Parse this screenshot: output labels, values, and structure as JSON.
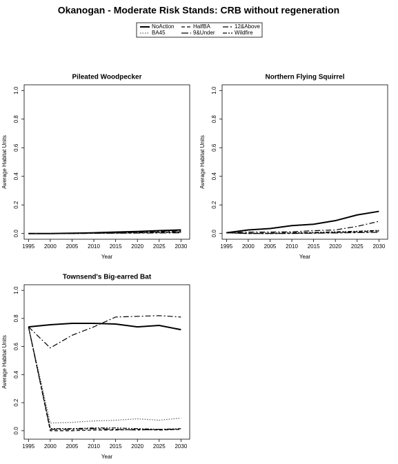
{
  "title": "Okanogan  - Moderate Risk Stands: CRB without regeneration",
  "chart_data": [
    {
      "type": "line",
      "title": "Pileated Woodpecker",
      "x_label": "Year",
      "y_label": "Average Habitat Units",
      "x": [
        1995,
        2000,
        2005,
        2010,
        2015,
        2020,
        2025,
        2030
      ],
      "xlim": [
        1994,
        2032
      ],
      "xticks": [
        1995,
        2000,
        2005,
        2010,
        2015,
        2020,
        2025,
        2030
      ],
      "ylim": [
        -0.04,
        1.04
      ],
      "yticks": [
        {
          "value": 0,
          "label": "0.0"
        },
        0.2,
        0.4,
        0.6,
        0.8,
        {
          "value": 1,
          "label": "1.0"
        }
      ],
      "series": [
        {
          "name": "NoAction",
          "color": "#000000",
          "values": [
            0,
            0,
            0.002,
            0.005,
            0.01,
            0.014,
            0.02,
            0.025
          ]
        },
        {
          "name": "HalfBA",
          "color": "#000000",
          "values": [
            0,
            0,
            0,
            0.002,
            0.004,
            0.006,
            0.01,
            0.012
          ]
        },
        {
          "name": "12&Above",
          "color": "#000000",
          "values": [
            0,
            0,
            0.001,
            0.003,
            0.006,
            0.01,
            0.015,
            0.018
          ]
        },
        {
          "name": "BA45",
          "color": "#555555",
          "values": [
            0,
            0,
            0.001,
            0.002,
            0.004,
            0.005,
            0.008,
            0.01
          ]
        },
        {
          "name": "9&Under",
          "color": "#000000",
          "values": [
            0,
            0,
            0,
            0.001,
            0.002,
            0.003,
            0.004,
            0.005
          ]
        },
        {
          "name": "Wildfire",
          "color": "#000000",
          "values": [
            0,
            0,
            0.001,
            0.002,
            0.003,
            0.005,
            0.006,
            0.008
          ]
        }
      ]
    },
    {
      "type": "line",
      "title": "Northern Flying Squirrel",
      "x_label": "Year",
      "y_label": "Average Habitat Units",
      "x": [
        1995,
        2000,
        2005,
        2010,
        2015,
        2020,
        2025,
        2030
      ],
      "xlim": [
        1994,
        2032
      ],
      "xticks": [
        1995,
        2000,
        2005,
        2010,
        2015,
        2020,
        2025,
        2030
      ],
      "ylim": [
        -0.04,
        1.04
      ],
      "yticks": [
        {
          "value": 0,
          "label": "0.0"
        },
        0.2,
        0.4,
        0.6,
        0.8,
        {
          "value": 1,
          "label": "1.0"
        }
      ],
      "series": [
        {
          "name": "NoAction",
          "color": "#000000",
          "values": [
            0.005,
            0.025,
            0.035,
            0.055,
            0.065,
            0.09,
            0.13,
            0.155
          ]
        },
        {
          "name": "HalfBA",
          "color": "#000000",
          "values": [
            0.005,
            0,
            0,
            0.002,
            0.004,
            0.008,
            0.012,
            0.018
          ]
        },
        {
          "name": "12&Above",
          "color": "#000000",
          "values": [
            0.005,
            0.01,
            0.01,
            0.012,
            0.02,
            0.025,
            0.05,
            0.085
          ]
        },
        {
          "name": "BA45",
          "color": "#555555",
          "values": [
            0.005,
            0,
            0,
            0.001,
            0.003,
            0.005,
            0.008,
            0.01
          ]
        },
        {
          "name": "9&Under",
          "color": "#000000",
          "values": [
            0.005,
            0,
            0,
            0,
            0.002,
            0.004,
            0.006,
            0.008
          ]
        },
        {
          "name": "Wildfire",
          "color": "#000000",
          "values": [
            0.005,
            0.002,
            0.003,
            0.005,
            0.008,
            0.012,
            0.016,
            0.022
          ]
        }
      ]
    },
    {
      "type": "line",
      "title": "Townsend's Big-earred Bat",
      "x_label": "Year",
      "y_label": "Average Habitat Units",
      "x": [
        1995,
        2000,
        2005,
        2010,
        2015,
        2020,
        2025,
        2030
      ],
      "xlim": [
        1994,
        2032
      ],
      "xticks": [
        1995,
        2000,
        2005,
        2010,
        2015,
        2020,
        2025,
        2030
      ],
      "ylim": [
        -0.06,
        1.04
      ],
      "yticks": [
        {
          "value": 0,
          "label": "0.0"
        },
        0.2,
        0.4,
        0.6,
        0.8,
        {
          "value": 1,
          "label": "1.0"
        }
      ],
      "series": [
        {
          "name": "NoAction",
          "color": "#000000",
          "values": [
            0.74,
            0.755,
            0.765,
            0.765,
            0.76,
            0.74,
            0.75,
            0.72
          ]
        },
        {
          "name": "HalfBA",
          "color": "#000000",
          "values": [
            0.74,
            0,
            0,
            0.005,
            0.005,
            0.01,
            0.005,
            0.01
          ]
        },
        {
          "name": "12&Above",
          "color": "#000000",
          "values": [
            0.74,
            0.59,
            0.68,
            0.74,
            0.81,
            0.815,
            0.82,
            0.81
          ]
        },
        {
          "name": "BA45",
          "color": "#555555",
          "values": [
            0.74,
            0.055,
            0.06,
            0.07,
            0.075,
            0.085,
            0.075,
            0.09
          ]
        },
        {
          "name": "9&Under",
          "color": "#000000",
          "values": [
            0.74,
            0.01,
            0.01,
            0.015,
            0.01,
            0.005,
            0.01,
            0.01
          ]
        },
        {
          "name": "Wildfire",
          "color": "#000000",
          "values": [
            0.74,
            0.015,
            0.015,
            0.02,
            0.02,
            0.015,
            0.01,
            0.015
          ]
        }
      ]
    }
  ]
}
